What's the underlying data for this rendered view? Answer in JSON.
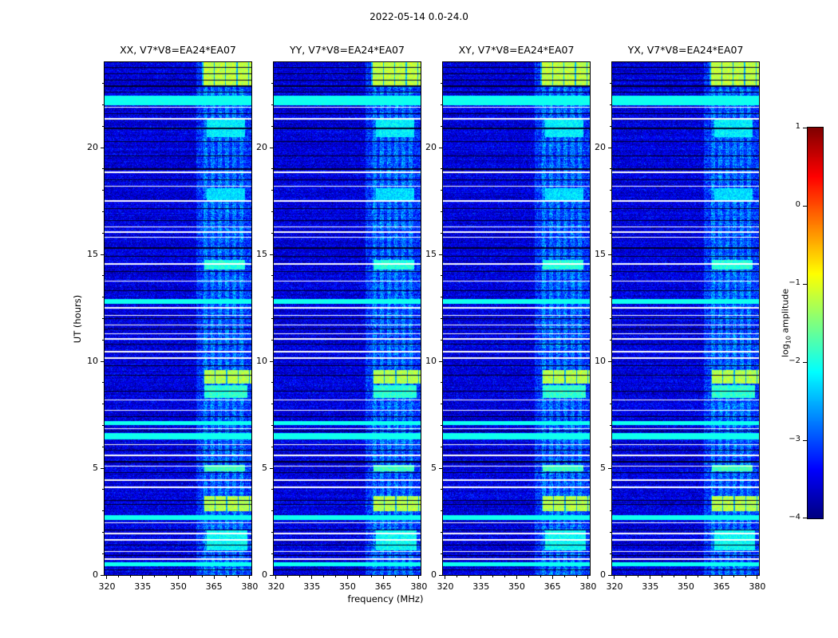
{
  "figure": {
    "title": "2022-05-14 0.0-24.0",
    "xlabel": "frequency (MHz)",
    "ylabel": "UT (hours)",
    "colorbar_label": {
      "prefix": "log",
      "sub": "10",
      "suffix": " amplitude"
    }
  },
  "chart_data": {
    "type": "heatmap",
    "title": "2022-05-14 0.0-24.0",
    "xlabel": "frequency (MHz)",
    "ylabel": "UT (hours)",
    "panels": [
      {
        "pol": "XX",
        "title": "XX, V7*V8=EA24*EA07",
        "seed": 101
      },
      {
        "pol": "YY",
        "title": "YY, V7*V8=EA24*EA07",
        "seed": 202
      },
      {
        "pol": "XY",
        "title": "XY, V7*V8=EA24*EA07",
        "seed": 303
      },
      {
        "pol": "YX",
        "title": "YX, V7*V8=EA24*EA07",
        "seed": 404
      }
    ],
    "x_axis": {
      "label": "frequency (MHz)",
      "range": [
        319,
        380.7
      ],
      "major_ticks": [
        320,
        335,
        350,
        365,
        380
      ],
      "minor_step": 5
    },
    "y_axis": {
      "label": "UT (hours)",
      "range": [
        0,
        24
      ],
      "major_ticks": [
        0,
        5,
        10,
        15,
        20
      ],
      "minor_step": 1
    },
    "colorbar": {
      "label": "log10 amplitude",
      "range": [
        -4,
        1
      ],
      "ticks": [
        1,
        0,
        -1,
        -2,
        -3,
        -4
      ],
      "colormap": "jet"
    },
    "background_level": -3.55,
    "noise_sigma": 0.28,
    "rfi_band": {
      "f0": 357.5,
      "f1": 380.7,
      "boost": 0.55,
      "stripes": [
        361.5,
        364.5,
        367.5,
        370.5,
        373.5,
        376.5
      ],
      "stripe_width": 0.9,
      "stripe_boost": 0.5
    },
    "bright_blocks": [
      {
        "t0": 22.85,
        "t1": 24.0,
        "f0": 360.0,
        "f1": 380.7,
        "level": -1.25
      },
      {
        "t0": 8.95,
        "t1": 9.6,
        "f0": 360.5,
        "f1": 380.7,
        "level": -1.3
      },
      {
        "t0": 3.0,
        "t1": 3.7,
        "f0": 360.5,
        "f1": 380.7,
        "level": -1.3
      },
      {
        "t0": 8.3,
        "t1": 8.9,
        "f0": 361.0,
        "f1": 379.0,
        "level": -1.95
      },
      {
        "t0": 14.3,
        "t1": 14.75,
        "f0": 361.0,
        "f1": 378.0,
        "level": -2.0
      },
      {
        "t0": 4.85,
        "t1": 5.15,
        "f0": 361.0,
        "f1": 378.0,
        "level": -1.85
      },
      {
        "t0": 1.15,
        "t1": 2.1,
        "f0": 362.0,
        "f1": 379.0,
        "level": -2.15
      },
      {
        "t0": 20.5,
        "t1": 21.3,
        "f0": 362.0,
        "f1": 378.0,
        "level": -2.25
      },
      {
        "t0": 17.5,
        "t1": 18.1,
        "f0": 362.0,
        "f1": 378.0,
        "level": -2.35
      }
    ],
    "white_lines": [
      21.9,
      21.35,
      18.85,
      18.2,
      17.5,
      16.3,
      16.05,
      15.8,
      14.55,
      13.75,
      12.5,
      12.15,
      11.7,
      11.3,
      11.05,
      10.45,
      10.15,
      8.2,
      7.7,
      6.85,
      6.1,
      5.6,
      5.1,
      4.45,
      4.1,
      2.45,
      1.95,
      1.65,
      1.1,
      0.75
    ],
    "cyan_bands": [
      {
        "t": 22.2,
        "w": 0.22
      },
      {
        "t": 12.8,
        "w": 0.1
      },
      {
        "t": 7.1,
        "w": 0.09
      },
      {
        "t": 6.5,
        "w": 0.16
      },
      {
        "t": 2.7,
        "w": 0.11
      },
      {
        "t": 0.5,
        "w": 0.09
      }
    ],
    "dark_lines": [
      23.15,
      23.45,
      23.75,
      22.88,
      22.6,
      21.6,
      20.9,
      20.3,
      19.6,
      19.0,
      18.5,
      17.15,
      16.6,
      15.3,
      14.9,
      14.2,
      13.3,
      12.0,
      11.5,
      10.8,
      9.8,
      9.35,
      8.6,
      7.4,
      6.75,
      5.85,
      5.3,
      4.8,
      3.5,
      3.3,
      2.1,
      1.4,
      0.9,
      0.25
    ]
  }
}
